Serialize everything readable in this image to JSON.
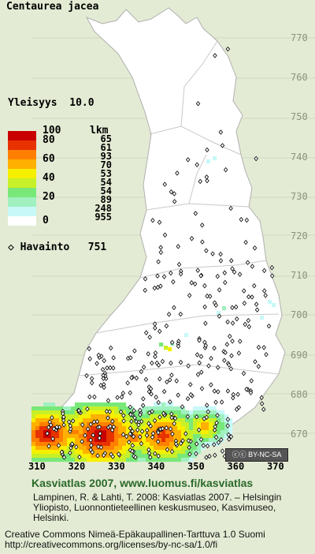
{
  "species": "Centaurea jacea",
  "frequency": {
    "label": "Yleisyys",
    "value": "10.0"
  },
  "legend": {
    "count_header": "lkm",
    "classes": [
      {
        "value": "100",
        "color": "#c80000",
        "count": "65"
      },
      {
        "value": "80",
        "color": "#e83200",
        "count": "61"
      },
      {
        "value": "",
        "color": "#ff8000",
        "count": "93"
      },
      {
        "value": "60",
        "color": "#ffb000",
        "count": "70"
      },
      {
        "value": "",
        "color": "#f6f000",
        "count": "53"
      },
      {
        "value": "40",
        "color": "#c8f028",
        "count": "54"
      },
      {
        "value": "",
        "color": "#78e878",
        "count": "54"
      },
      {
        "value": "20",
        "color": "#a0f0c0",
        "count": "89"
      },
      {
        "value": "",
        "color": "#c8f8f8",
        "count": "248"
      },
      {
        "value": "0",
        "color": "#ffffff",
        "count": "955"
      }
    ],
    "observation": {
      "symbol": "◇",
      "label": "Havainto",
      "count": "751"
    }
  },
  "y_axis": [
    "770",
    "760",
    "750",
    "740",
    "730",
    "720",
    "710",
    "700",
    "690",
    "680",
    "670"
  ],
  "x_axis": [
    "310",
    "320",
    "330",
    "340",
    "350",
    "360",
    "370"
  ],
  "license_badge": "BY-NC-SA",
  "footer": {
    "heading": "Kasviatlas 2007, www.luomus.fi/kasviatlas",
    "citation": "Lampinen, R. & Lahti, T. 2008: Kasviatlas 2007. – Helsingin Yliopisto, Luonnontieteellinen keskusmuseo, Kasvimuseo, Helsinki.",
    "license": "Creative Commons Nimeä-Epäkaupallinen-Tarttuva 1.0 Suomi http://creativecommons.org/licenses/by-nc-sa/1.0/fi"
  },
  "colors": {
    "background": "#e4ebd4",
    "land": "#ffffff",
    "border": "#b8b8b8",
    "footer_green": "#2a6a2a"
  }
}
